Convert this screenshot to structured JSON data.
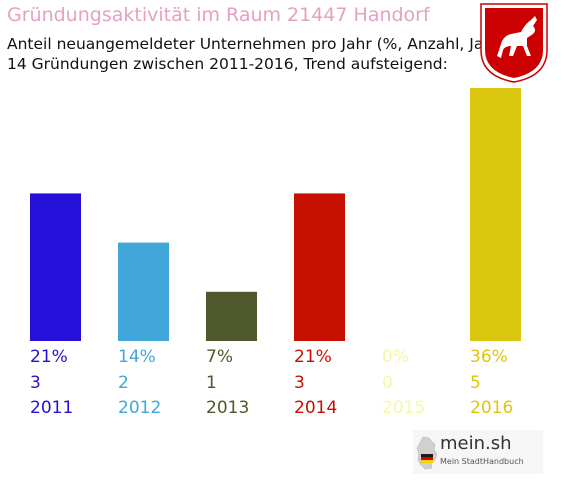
{
  "header": {
    "title": "Gründungsaktivität im Raum 21447 Handorf",
    "subtitle_line1": "Anteil neuangemeldeter Unternehmen pro Jahr (%, Anzahl, Jahr)",
    "subtitle_line2": "14 Gründungen zwischen 2011-2016, Trend aufsteigend:"
  },
  "crest": {
    "icon": "lower-saxony-horse-crest-icon",
    "colors": [
      "#cc0000",
      "#ffffff"
    ]
  },
  "chart_data": {
    "type": "bar",
    "title": "Gründungsaktivität im Raum 21447 Handorf",
    "categories": [
      "2011",
      "2012",
      "2013",
      "2014",
      "2015",
      "2016"
    ],
    "values": [
      21,
      14,
      7,
      21,
      0,
      36
    ],
    "percent_labels": [
      "21%",
      "14%",
      "7%",
      "21%",
      "0%",
      "36%"
    ],
    "counts": [
      "3",
      "2",
      "1",
      "3",
      "0",
      "5"
    ],
    "colors": [
      "#2410d8",
      "#41a6d9",
      "#4f582a",
      "#c51000",
      "#f3f9a3",
      "#dbc710"
    ],
    "ylim": [
      0,
      36
    ],
    "grid": false,
    "legend": "none"
  },
  "brand": {
    "name": "mein.sh",
    "tagline": "Mein StadtHandbuch",
    "icon": "germany-map-icon"
  }
}
